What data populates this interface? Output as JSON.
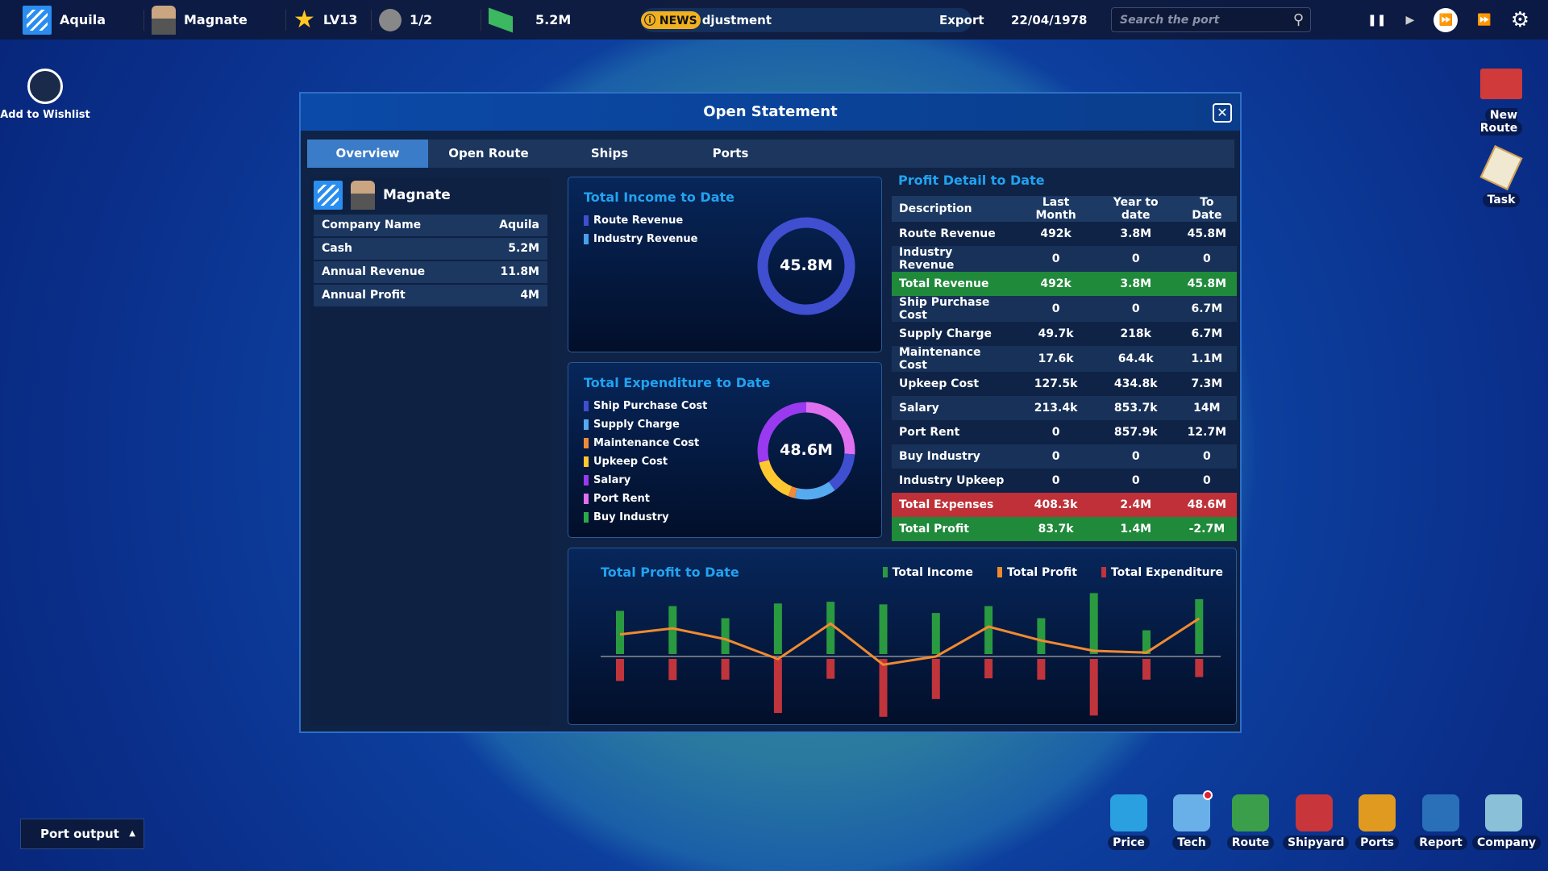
{
  "topbar": {
    "company": "Aquila",
    "player": "Magnate",
    "level": "LV13",
    "slots": "1/2",
    "cash": "5.2M",
    "news_badge": "NEWS",
    "news_text": "djustment",
    "export": "Export",
    "date": "22/04/1978",
    "search_placeholder": "Search the port"
  },
  "side": {
    "wishlist": "Add to Wishlist",
    "new_route": "New Route",
    "task": "Task",
    "port_output": "Port output"
  },
  "dock": [
    {
      "label": "Price",
      "color": "#2aa0e0"
    },
    {
      "label": "Tech",
      "color": "#6ab0e8"
    },
    {
      "label": "Route",
      "color": "#3a9e4a"
    },
    {
      "label": "Shipyard",
      "color": "#c8353a"
    },
    {
      "label": "Ports",
      "color": "#e09a20"
    },
    {
      "label": "Report",
      "color": "#2a70b8"
    },
    {
      "label": "Company",
      "color": "#8ac0d8"
    }
  ],
  "modal": {
    "title": "Open Statement",
    "tabs": [
      "Overview",
      "Open Route",
      "Ships",
      "Ports"
    ],
    "profile": {
      "name": "Magnate",
      "rows": [
        [
          "Company Name",
          "Aquila"
        ],
        [
          "Cash",
          "5.2M"
        ],
        [
          "Annual Revenue",
          "11.8M"
        ],
        [
          "Annual Profit",
          "4M"
        ]
      ]
    },
    "income": {
      "title": "Total Income to Date",
      "total": "45.8M",
      "legend": [
        {
          "label": "Route Revenue",
          "color": "#3f4fd0",
          "value": 45.8
        },
        {
          "label": "Industry Revenue",
          "color": "#4aa0f0",
          "value": 0
        }
      ]
    },
    "expenditure": {
      "title": "Total Expenditure to Date",
      "total": "48.6M",
      "legend": [
        {
          "label": "Ship Purchase Cost",
          "color": "#3f4fd0",
          "value": 6.7
        },
        {
          "label": "Supply Charge",
          "color": "#55aaf0",
          "value": 6.7
        },
        {
          "label": "Maintenance Cost",
          "color": "#f08a3a",
          "value": 1.1
        },
        {
          "label": "Upkeep Cost",
          "color": "#ffc830",
          "value": 7.3
        },
        {
          "label": "Salary",
          "color": "#9a3af0",
          "value": 14
        },
        {
          "label": "Port Rent",
          "color": "#e070f0",
          "value": 12.7
        },
        {
          "label": "Buy Industry",
          "color": "#2aaa4a",
          "value": 0
        }
      ]
    },
    "profit_detail": {
      "title": "Profit Detail to Date",
      "headers": [
        "Description",
        "Last Month",
        "Year to date",
        "To Date"
      ],
      "rows": [
        [
          "Route Revenue",
          "492k",
          "3.8M",
          "45.8M"
        ],
        [
          "Industry Revenue",
          "0",
          "0",
          "0"
        ],
        [
          "Total Revenue",
          "492k",
          "3.8M",
          "45.8M"
        ],
        [
          "Ship Purchase Cost",
          "0",
          "0",
          "6.7M"
        ],
        [
          "Supply Charge",
          "49.7k",
          "218k",
          "6.7M"
        ],
        [
          "Maintenance Cost",
          "17.6k",
          "64.4k",
          "1.1M"
        ],
        [
          "Upkeep Cost",
          "127.5k",
          "434.8k",
          "7.3M"
        ],
        [
          "Salary",
          "213.4k",
          "853.7k",
          "14M"
        ],
        [
          "Port Rent",
          "0",
          "857.9k",
          "12.7M"
        ],
        [
          "Buy Industry",
          "0",
          "0",
          "0"
        ],
        [
          "Industry Upkeep",
          "0",
          "0",
          "0"
        ],
        [
          "Total Expenses",
          "408.3k",
          "2.4M",
          "48.6M"
        ],
        [
          "Total Profit",
          "83.7k",
          "1.4M",
          "-2.7M"
        ]
      ]
    }
  },
  "chart_data": {
    "type": "bar",
    "title": "Total Profit to Date",
    "legend_position": "top-right",
    "grid": false,
    "series": [
      {
        "name": "Total Income",
        "color": "#2a9a40",
        "values": [
          100,
          111,
          83,
          117,
          121,
          115,
          95,
          111,
          83,
          141,
          55,
          127
        ]
      },
      {
        "name": "Total Profit",
        "color": "#f08a30",
        "type": "line",
        "values": [
          51,
          65,
          40,
          -6,
          76,
          -19,
          0,
          69,
          37,
          13,
          9,
          88
        ]
      },
      {
        "name": "Total Expenditure",
        "color": "#c0343c",
        "values": [
          51,
          49,
          48,
          125,
          46,
          134,
          93,
          45,
          48,
          131,
          48,
          42
        ]
      }
    ]
  }
}
